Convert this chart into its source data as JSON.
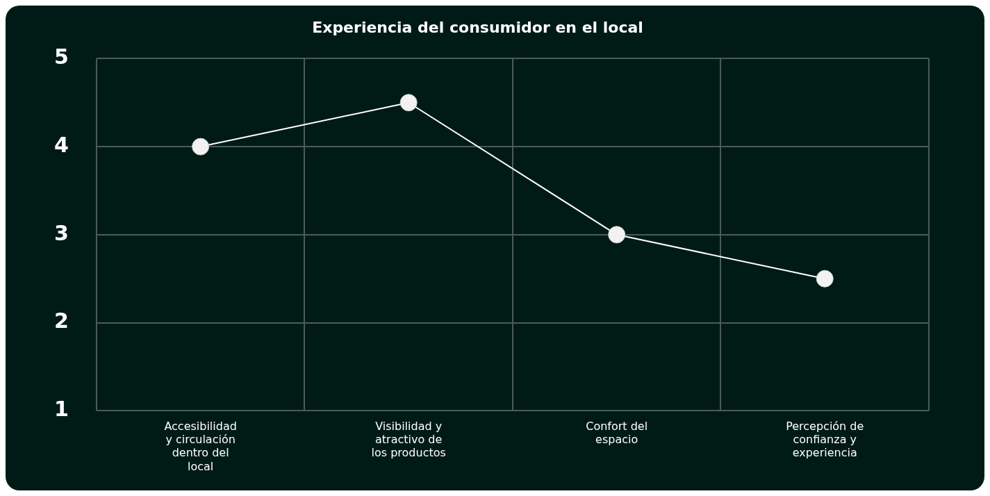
{
  "chart_data": {
    "type": "line",
    "title": "Experiencia del consumidor en el local",
    "categories": [
      "Accesibilidad y circulación dentro del local",
      "Visibilidad y atractivo de los productos",
      "Confort del espacio",
      "Percepción de confianza y experiencia"
    ],
    "series": [
      {
        "color": "#ffffff",
        "values": [
          4,
          4.5,
          3,
          2.5
        ]
      }
    ],
    "ylim": [
      1,
      5
    ],
    "yticks": [
      1,
      2,
      3,
      4,
      5
    ],
    "grid": true,
    "legend": false,
    "marker": "circle",
    "line_style": "solid"
  }
}
